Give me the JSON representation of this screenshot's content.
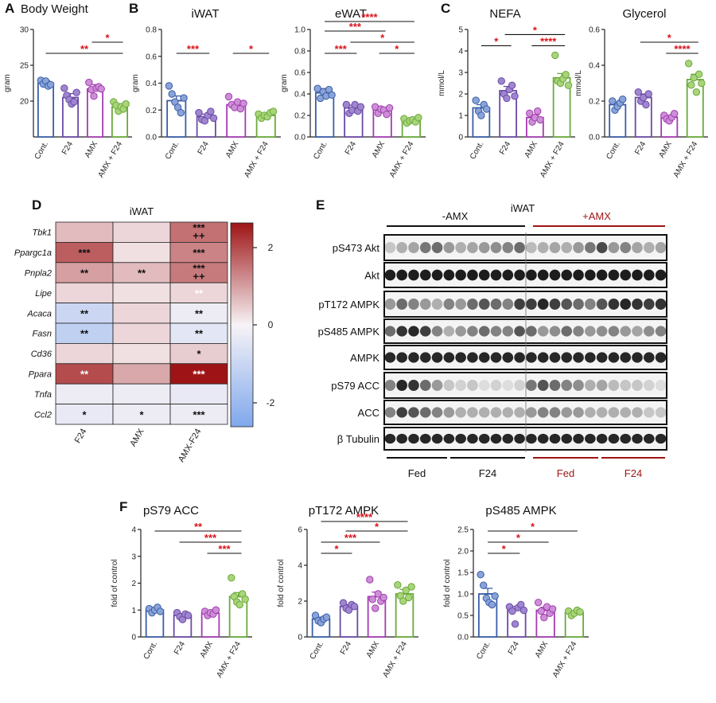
{
  "panels": {
    "A": "A",
    "B": "B",
    "C": "C",
    "D": "D",
    "E": "E",
    "F": "F"
  },
  "colors": {
    "cont": "#3a5ea8",
    "f24": "#6a4aa6",
    "amx": "#a33cb0",
    "amxf24": "#6aaa3a",
    "cont_fill": "#8aa3d8",
    "f24_fill": "#9f86cf",
    "amx_fill": "#cc8fd6",
    "amxf24_fill": "#a9d47a",
    "sig": "#d8151c",
    "heat_pos": "#9e1416",
    "heat_neg": "#7fa8ec"
  },
  "chart_data": [
    {
      "id": "bw",
      "type": "bar",
      "title": "Body Weight",
      "ylabel": "gram",
      "ylim": [
        15,
        30
      ],
      "yticks": [
        20,
        25,
        30
      ],
      "categories": [
        "Cont.",
        "F24",
        "AMX",
        "AMX + F24"
      ],
      "values": [
        22.5,
        20.5,
        21.7,
        19.2
      ],
      "errors": [
        0.35,
        0.55,
        0.6,
        0.45
      ],
      "points": [
        [
          22.9,
          22.4,
          22.8,
          22.1,
          22.3
        ],
        [
          21.8,
          20.8,
          20.2,
          19.6,
          19.9,
          21.2
        ],
        [
          22.6,
          21.6,
          20.7,
          21.8,
          22.0,
          21.7
        ],
        [
          19.9,
          19.4,
          18.6,
          19.2,
          18.9,
          19.6
        ]
      ],
      "sig": [
        {
          "a": 0,
          "b": 3,
          "level": 0,
          "label": "**"
        },
        {
          "a": 2,
          "b": 3,
          "level": 1,
          "label": "*"
        }
      ]
    },
    {
      "id": "iwat",
      "type": "bar",
      "title": "iWAT",
      "ylabel": "gram",
      "ylim": [
        0,
        0.8
      ],
      "yticks": [
        0.0,
        0.2,
        0.4,
        0.6,
        0.8
      ],
      "categories": [
        "Cont.",
        "F24",
        "AMX",
        "AMX + F24"
      ],
      "values": [
        0.27,
        0.15,
        0.24,
        0.16
      ],
      "errors": [
        0.035,
        0.02,
        0.02,
        0.015
      ],
      "points": [
        [
          0.38,
          0.32,
          0.26,
          0.22,
          0.18,
          0.29
        ],
        [
          0.18,
          0.13,
          0.12,
          0.16,
          0.19,
          0.14
        ],
        [
          0.3,
          0.24,
          0.22,
          0.26,
          0.21,
          0.25
        ],
        [
          0.17,
          0.14,
          0.16,
          0.15,
          0.18,
          0.19
        ]
      ],
      "sig": [
        {
          "a": 0,
          "b": 1,
          "level": 0,
          "label": "***"
        },
        {
          "a": 2,
          "b": 3,
          "level": 0,
          "label": "*"
        }
      ]
    },
    {
      "id": "ewat",
      "type": "bar",
      "title": "eWAT",
      "ylabel": "gram",
      "ylim": [
        0,
        1.0
      ],
      "yticks": [
        0.0,
        0.2,
        0.4,
        0.6,
        0.8,
        1.0
      ],
      "categories": [
        "Cont.",
        "F24",
        "AMX",
        "AMX + F24"
      ],
      "values": [
        0.41,
        0.27,
        0.25,
        0.15
      ],
      "errors": [
        0.04,
        0.025,
        0.02,
        0.015
      ],
      "points": [
        [
          0.45,
          0.36,
          0.42,
          0.38,
          0.44,
          0.39
        ],
        [
          0.3,
          0.22,
          0.25,
          0.3,
          0.24,
          0.28
        ],
        [
          0.28,
          0.22,
          0.26,
          0.25,
          0.21,
          0.27
        ],
        [
          0.17,
          0.13,
          0.15,
          0.16,
          0.14,
          0.18
        ]
      ],
      "sig": [
        {
          "a": 0,
          "b": 1,
          "level": 0,
          "label": "***"
        },
        {
          "a": 2,
          "b": 3,
          "level": 0,
          "label": "*"
        },
        {
          "a": 1,
          "b": 3,
          "level": 1,
          "label": "*"
        },
        {
          "a": 0,
          "b": 2,
          "level": 2,
          "label": "***"
        },
        {
          "a": 0,
          "b": 3,
          "level": 3,
          "label": "****"
        }
      ]
    },
    {
      "id": "nefa",
      "type": "bar",
      "title": "NEFA",
      "ylabel": "mmol/L",
      "ylim": [
        0,
        5
      ],
      "yticks": [
        0,
        1,
        2,
        3,
        4,
        5
      ],
      "categories": [
        "Cont.",
        "F24",
        "AMX",
        "AMX + F24"
      ],
      "values": [
        1.35,
        2.15,
        0.9,
        2.75
      ],
      "errors": [
        0.15,
        0.2,
        0.12,
        0.2
      ],
      "points": [
        [
          1.7,
          1.2,
          1.0,
          1.5,
          1.3
        ],
        [
          2.6,
          2.0,
          1.8,
          2.2,
          2.4,
          1.9
        ],
        [
          1.1,
          0.7,
          0.9,
          1.2,
          0.8
        ],
        [
          3.8,
          2.6,
          2.5,
          2.7,
          2.9,
          2.4
        ]
      ],
      "sig": [
        {
          "a": 0,
          "b": 1,
          "level": 0,
          "label": "*"
        },
        {
          "a": 2,
          "b": 3,
          "level": 0,
          "label": "****"
        },
        {
          "a": 1,
          "b": 3,
          "level": 1,
          "label": "*"
        }
      ]
    },
    {
      "id": "glyc",
      "type": "bar",
      "title": "Glycerol",
      "ylabel": "mmol/L",
      "ylim": [
        0,
        0.6
      ],
      "yticks": [
        0.0,
        0.2,
        0.4,
        0.6
      ],
      "categories": [
        "Cont.",
        "F24",
        "AMX",
        "AMX + F24"
      ],
      "values": [
        0.18,
        0.22,
        0.11,
        0.32
      ],
      "errors": [
        0.015,
        0.02,
        0.01,
        0.03
      ],
      "points": [
        [
          0.2,
          0.15,
          0.17,
          0.19,
          0.21
        ],
        [
          0.25,
          0.2,
          0.22,
          0.18,
          0.24
        ],
        [
          0.12,
          0.1,
          0.09,
          0.11,
          0.13
        ],
        [
          0.41,
          0.29,
          0.33,
          0.25,
          0.35,
          0.3
        ]
      ],
      "sig": [
        {
          "a": 2,
          "b": 3,
          "level": 0,
          "label": "****"
        },
        {
          "a": 1,
          "b": 3,
          "level": 1,
          "label": "*"
        }
      ]
    },
    {
      "id": "acc",
      "type": "bar",
      "title": "pS79 ACC",
      "ylabel": "fold of control",
      "ylim": [
        0,
        4
      ],
      "yticks": [
        0,
        1,
        2,
        3,
        4
      ],
      "categories": [
        "Cont.",
        "F24",
        "AMX",
        "AMX + F24"
      ],
      "values": [
        1.0,
        0.8,
        0.88,
        1.5
      ],
      "errors": [
        0.05,
        0.07,
        0.07,
        0.15
      ],
      "points": [
        [
          1.05,
          0.9,
          1.0,
          1.1,
          0.95
        ],
        [
          0.9,
          0.75,
          0.65,
          0.85,
          0.8
        ],
        [
          0.95,
          0.8,
          0.9,
          0.85,
          1.0
        ],
        [
          2.2,
          1.5,
          1.3,
          1.2,
          1.6,
          1.4
        ]
      ],
      "sig": [
        {
          "a": 2,
          "b": 3,
          "level": 0,
          "label": "***"
        },
        {
          "a": 1,
          "b": 3,
          "level": 1,
          "label": "***"
        },
        {
          "a": 0,
          "b": 3,
          "level": 2,
          "label": "**"
        }
      ]
    },
    {
      "id": "pt172",
      "type": "bar",
      "title": "pT172 AMPK",
      "ylabel": "fold of control",
      "ylim": [
        0,
        6
      ],
      "yticks": [
        0,
        2,
        4,
        6
      ],
      "categories": [
        "Cont.",
        "F24",
        "AMX",
        "AMX + F24"
      ],
      "values": [
        1.0,
        1.7,
        2.25,
        2.4
      ],
      "errors": [
        0.1,
        0.1,
        0.25,
        0.25
      ],
      "points": [
        [
          1.2,
          0.9,
          0.8,
          1.0,
          1.1
        ],
        [
          1.9,
          1.6,
          1.5,
          1.8,
          1.7
        ],
        [
          3.2,
          2.1,
          1.6,
          2.4,
          2.0,
          2.2
        ],
        [
          2.9,
          2.3,
          2.0,
          2.6,
          2.2,
          2.8
        ]
      ],
      "sig": [
        {
          "a": 0,
          "b": 1,
          "level": 0,
          "label": "*"
        },
        {
          "a": 0,
          "b": 2,
          "level": 1,
          "label": "***"
        },
        {
          "a": 1,
          "b": 3,
          "level": 2,
          "label": "*"
        },
        {
          "a": 0,
          "b": 3,
          "level": 3,
          "label": "****"
        }
      ]
    },
    {
      "id": "ps485",
      "type": "bar",
      "title": "pS485 AMPK",
      "ylabel": "fold of control",
      "ylim": [
        0,
        2.5
      ],
      "yticks": [
        0.0,
        0.5,
        1.0,
        1.5,
        2.0,
        2.5
      ],
      "categories": [
        "Cont.",
        "F24",
        "AMX",
        "AMX + F24"
      ],
      "values": [
        1.0,
        0.65,
        0.62,
        0.56
      ],
      "errors": [
        0.13,
        0.06,
        0.07,
        0.04
      ],
      "points": [
        [
          1.45,
          1.2,
          0.9,
          0.8,
          0.75,
          0.95
        ],
        [
          0.7,
          0.6,
          0.3,
          0.68,
          0.75,
          0.62
        ],
        [
          0.8,
          0.6,
          0.45,
          0.7,
          0.55,
          0.65
        ],
        [
          0.6,
          0.5,
          0.55,
          0.62,
          0.58
        ]
      ],
      "sig": [
        {
          "a": 0,
          "b": 1,
          "level": 0,
          "label": "*"
        },
        {
          "a": 0,
          "b": 2,
          "level": 1,
          "label": "*"
        },
        {
          "a": 0,
          "b": 3,
          "level": 2,
          "label": "*"
        }
      ]
    }
  ],
  "heatmap": {
    "type": "heatmap",
    "title": "iWAT",
    "genes": [
      "Tbk1",
      "Ppargc1a",
      "Pnpla2",
      "Lipe",
      "Acaca",
      "Fasn",
      "Cd36",
      "Ppara",
      "Tnfa",
      "Ccl2"
    ],
    "columns": [
      "F24",
      "AMX",
      "AMX-F24"
    ],
    "values": [
      [
        0.6,
        0.3,
        1.4
      ],
      [
        1.6,
        0.2,
        1.2
      ],
      [
        0.9,
        0.6,
        1.3
      ],
      [
        0.3,
        0.2,
        0.3
      ],
      [
        -0.9,
        0.3,
        -0.2
      ],
      [
        -1.1,
        0.3,
        -0.4
      ],
      [
        0.3,
        0.2,
        0.4
      ],
      [
        1.8,
        0.8,
        2.4
      ],
      [
        -0.2,
        -0.2,
        -0.3
      ],
      [
        -0.3,
        -0.2,
        -0.2
      ]
    ],
    "marks": [
      [
        "",
        "",
        "***\n++"
      ],
      [
        "***",
        "",
        "***"
      ],
      [
        "**",
        "**",
        "***\n++"
      ],
      [
        "",
        "",
        "**"
      ],
      [
        "**",
        "",
        "**"
      ],
      [
        "**",
        "",
        "**"
      ],
      [
        "",
        "",
        "*"
      ],
      [
        "**",
        "",
        "***"
      ],
      [
        "",
        "",
        ""
      ],
      [
        "*",
        "*",
        "***"
      ]
    ],
    "white_marks": [
      [
        3,
        2
      ],
      [
        7,
        0
      ],
      [
        7,
        2
      ]
    ],
    "colorbar_ticks": [
      "2",
      "0",
      "-2"
    ]
  },
  "blot": {
    "title": "iWAT",
    "minus_label": "-AMX",
    "plus_label": "+AMX",
    "rows": [
      "pS473 Akt",
      "Akt",
      "pT172 AMPK",
      "pS485 AMPK",
      "AMPK",
      "pS79 ACC",
      "ACC",
      "β Tubulin"
    ],
    "groups": [
      "Fed",
      "F24",
      "Fed",
      "F24"
    ]
  }
}
